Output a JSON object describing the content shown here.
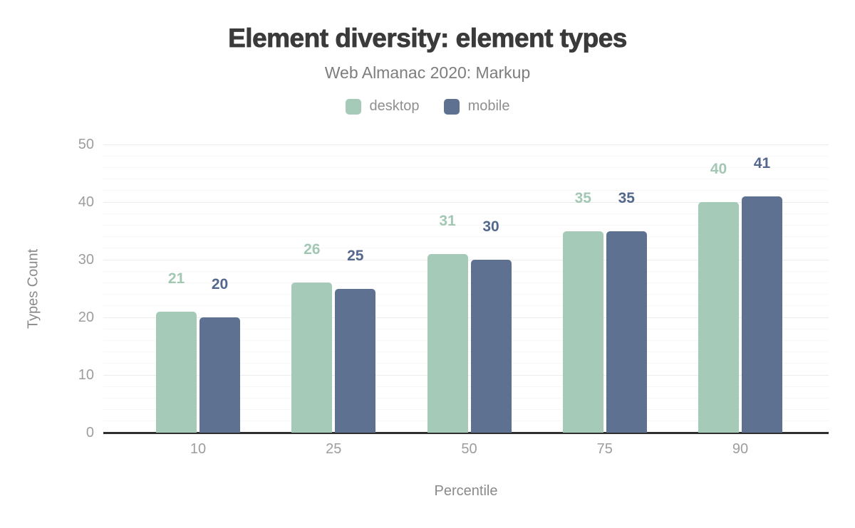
{
  "header": {
    "title": "Element diversity: element types",
    "subtitle": "Web Almanac 2020: Markup"
  },
  "axes": {
    "y_title": "Types Count",
    "x_title": "Percentile"
  },
  "colors": {
    "desktop": "#a6cab8",
    "desktop_label": "#a2c7b3",
    "mobile": "#5e7190",
    "mobile_label": "#53688c",
    "axis_line": "#2e2e2e",
    "grid_major": "#ececec",
    "grid_minor": "#f7f7f7",
    "tick_text": "#9d9d9d"
  },
  "chart_data": {
    "type": "bar",
    "title": "Element diversity: element types",
    "subtitle": "Web Almanac 2020: Markup",
    "categories": [
      "10",
      "25",
      "50",
      "75",
      "90"
    ],
    "series": [
      {
        "name": "desktop",
        "color": "#a6cab8",
        "label_color": "#a2c7b3",
        "values": [
          21,
          26,
          31,
          35,
          40
        ]
      },
      {
        "name": "mobile",
        "color": "#5e7190",
        "label_color": "#53688c",
        "values": [
          20,
          25,
          30,
          35,
          41
        ]
      }
    ],
    "xlabel": "Percentile",
    "ylabel": "Types Count",
    "ylim": [
      0,
      50
    ],
    "yticks": [
      0,
      10,
      20,
      30,
      40,
      50
    ],
    "minor_grid_step": 2,
    "grid": true,
    "legend_position": "top",
    "data_labels": true
  }
}
